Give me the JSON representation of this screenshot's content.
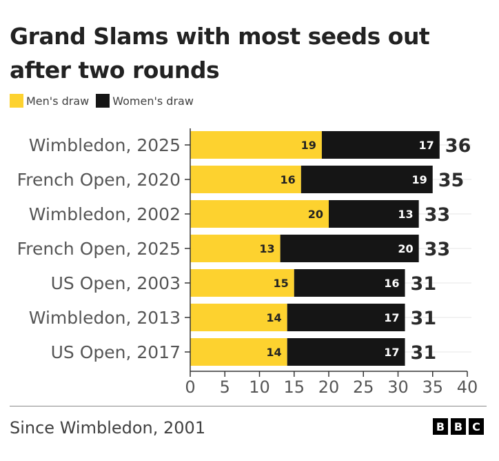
{
  "chart_data": {
    "type": "bar",
    "orientation": "horizontal",
    "stacked": true,
    "title": "Grand Slams with most seeds out after two rounds",
    "categories": [
      "Wimbledon, 2025",
      "French Open, 2020",
      "Wimbledon, 2002",
      "French Open, 2025",
      "US Open, 2003",
      "Wimbledon, 2013",
      "US Open, 2017"
    ],
    "series": [
      {
        "name": "Men's draw",
        "color": "#fdd22f",
        "label_color": "#222222",
        "values": [
          19,
          16,
          20,
          13,
          15,
          14,
          14
        ]
      },
      {
        "name": "Women's draw",
        "color": "#151515",
        "label_color": "#ffffff",
        "values": [
          17,
          19,
          13,
          20,
          16,
          17,
          17
        ]
      }
    ],
    "totals": [
      36,
      35,
      33,
      33,
      31,
      31,
      31
    ],
    "xlim": [
      0,
      40
    ],
    "xticks": [
      0,
      5,
      10,
      15,
      20,
      25,
      30,
      35,
      40
    ],
    "grid": true,
    "legend_position": "top-left"
  },
  "footer": {
    "source": "Since Wimbledon, 2001",
    "logo_letters": [
      "B",
      "B",
      "C"
    ]
  }
}
